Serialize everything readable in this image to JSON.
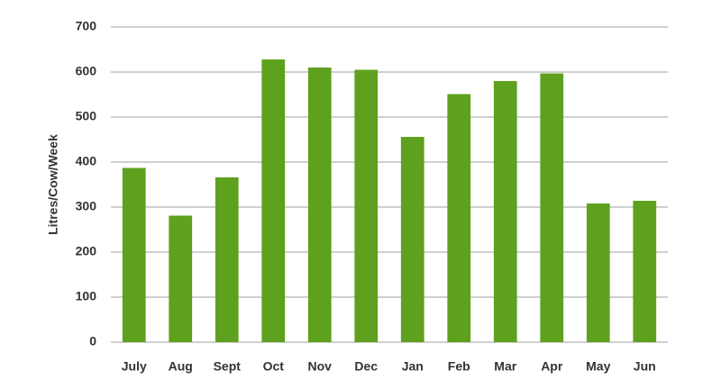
{
  "chart_data": {
    "type": "bar",
    "y_label": "Litres/Cow/Week",
    "categories": [
      "July",
      "Aug",
      "Sept",
      "Oct",
      "Nov",
      "Dec",
      "Jan",
      "Feb",
      "Mar",
      "Apr",
      "May",
      "Jun"
    ],
    "values": [
      387,
      281,
      366,
      628,
      610,
      605,
      456,
      551,
      580,
      597,
      308,
      314
    ],
    "color": "#5ea11f",
    "ylim": [
      0,
      700
    ],
    "yticks": [
      0,
      100,
      200,
      300,
      400,
      500,
      600,
      700
    ],
    "grid": true
  }
}
